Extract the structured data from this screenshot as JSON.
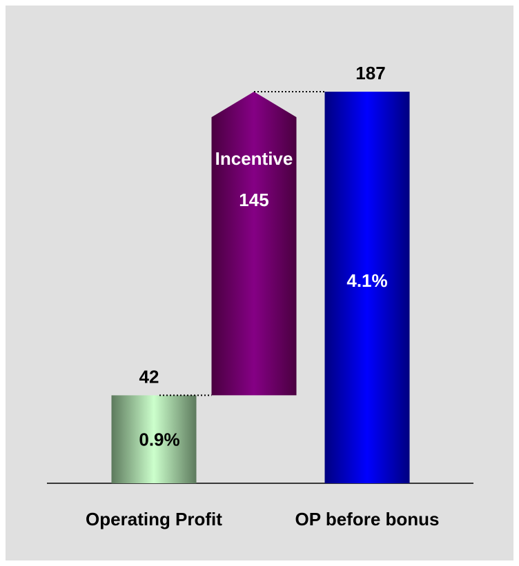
{
  "chart_data": {
    "type": "waterfall",
    "categories": [
      "Operating Profit",
      "Incentive",
      "OP before bonus"
    ],
    "measure": [
      "absolute",
      "relative",
      "total"
    ],
    "values": [
      42,
      145,
      187
    ],
    "shares": [
      "0.9%",
      null,
      "4.1%"
    ],
    "colors": [
      [
        "#5d7a5d",
        "#ccffcc"
      ],
      [
        "#4a0040",
        "#850085"
      ],
      [
        "#000080",
        "#0000ff"
      ]
    ],
    "ylim": [
      0,
      200
    ]
  }
}
